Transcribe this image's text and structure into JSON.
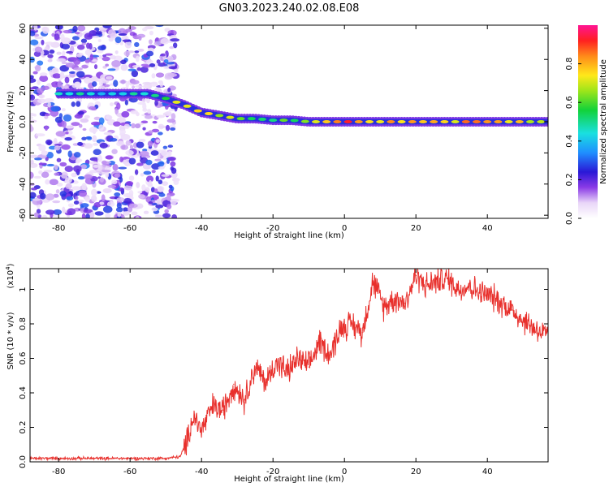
{
  "title": "GN03.2023.240.02.08.E08",
  "chart_data": [
    {
      "type": "heatmap",
      "title": "GN03.2023.240.02.08.E08",
      "xlabel": "Height of straight line (km)",
      "ylabel": "Frequency (Hz)",
      "xlim": [
        -88,
        57
      ],
      "ylim": [
        -62,
        62
      ],
      "xticks": [
        -80,
        -60,
        -40,
        -20,
        0,
        20,
        40
      ],
      "yticks": [
        -60,
        -40,
        -20,
        0,
        20,
        40,
        60
      ],
      "colorbar": {
        "label": "Normalized spectral amplitude",
        "range": [
          0,
          1
        ],
        "ticks": [
          0.0,
          0.2,
          0.4,
          0.6,
          0.8
        ]
      },
      "ridge": {
        "x": [
          -80,
          -70,
          -60,
          -55,
          -50,
          -45,
          -40,
          -35,
          -30,
          -25,
          -20,
          -15,
          -10,
          -5,
          0,
          10,
          20,
          30,
          40,
          57
        ],
        "frequency": [
          18,
          18,
          18,
          18,
          15,
          11,
          6,
          4,
          2,
          2,
          1,
          1,
          0,
          0,
          0,
          0,
          0,
          0,
          0,
          0
        ],
        "amplitude": [
          0.5,
          0.5,
          0.5,
          0.55,
          0.6,
          0.85,
          0.8,
          0.7,
          0.75,
          0.7,
          0.65,
          0.7,
          0.75,
          0.9,
          0.95,
          0.9,
          0.85,
          0.9,
          0.9,
          0.85
        ]
      },
      "noise_region": {
        "x": [
          -88,
          -47
        ],
        "frequency": [
          -62,
          62
        ],
        "amplitude": 0.2
      }
    },
    {
      "type": "line",
      "xlabel": "Height of straight line (km)",
      "ylabel": "SNR (10 * v/v)",
      "ylabel_multiplier": "(x10",
      "ylabel_multiplier_exp": "4",
      "y_multiplier_text": ")",
      "xlim": [
        -88,
        57
      ],
      "ylim": [
        0,
        1.12
      ],
      "xticks": [
        -80,
        -60,
        -40,
        -20,
        0,
        20,
        40
      ],
      "yticks": [
        0.0,
        0.2,
        0.4,
        0.6,
        0.8,
        1.0
      ],
      "color": "#e8302c",
      "series": [
        {
          "x": [
            -88,
            -80,
            -70,
            -60,
            -50,
            -46,
            -44,
            -43,
            -42,
            -40,
            -37,
            -34,
            -31,
            -28,
            -25,
            -22,
            -19,
            -16,
            -13,
            -10,
            -7,
            -4,
            -1,
            2,
            5,
            8,
            11,
            14,
            17,
            20,
            23,
            26,
            29,
            32,
            35,
            38,
            41,
            44,
            47,
            50,
            53,
            57
          ],
          "y": [
            0.02,
            0.02,
            0.02,
            0.02,
            0.02,
            0.03,
            0.12,
            0.22,
            0.26,
            0.18,
            0.32,
            0.3,
            0.45,
            0.36,
            0.55,
            0.46,
            0.58,
            0.52,
            0.6,
            0.55,
            0.7,
            0.62,
            0.78,
            0.8,
            0.75,
            1.05,
            0.9,
            0.95,
            0.92,
            1.08,
            1.02,
            1.05,
            1.06,
            1.0,
            1.02,
            0.98,
            0.96,
            0.92,
            0.88,
            0.82,
            0.78,
            0.72
          ]
        }
      ]
    }
  ]
}
